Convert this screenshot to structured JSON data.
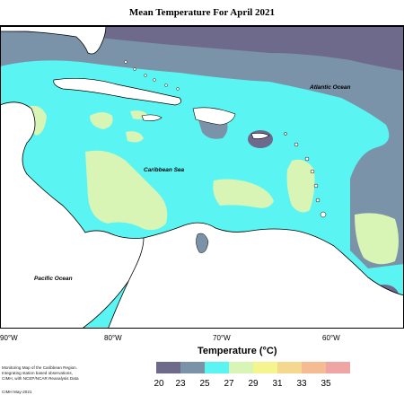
{
  "map": {
    "title": "Mean Temperature For April 2021",
    "labels": {
      "atlantic": "Atlantic Ocean",
      "caribbean": "Caribbean Sea",
      "pacific": "Pacific Ocean"
    },
    "longitude_ticks": [
      "90°W",
      "80°W",
      "70°W",
      "60°W"
    ]
  },
  "legend": {
    "title": "Temperature (°C)",
    "ticks": [
      "20",
      "23",
      "25",
      "27",
      "29",
      "31",
      "33",
      "35"
    ],
    "colors": [
      "#6e6a8c",
      "#7b93a8",
      "#5af5f2",
      "#d9f5b5",
      "#f5f590",
      "#f5d890",
      "#f5bb92",
      "#f0a5a5"
    ]
  },
  "credits": {
    "lines": [
      "Monitoring Map of the Caribbean Region.",
      "Integrating station based observations,",
      "CIMH, with NCEP/NCAR Reanalysis Data"
    ],
    "footer": "CIMH May-2021"
  },
  "colors": {
    "dark": "#6e6a8c",
    "slate": "#7b93a8",
    "cyan": "#5af5f2",
    "pale": "#d9f5b5",
    "land": "#ffffff"
  }
}
